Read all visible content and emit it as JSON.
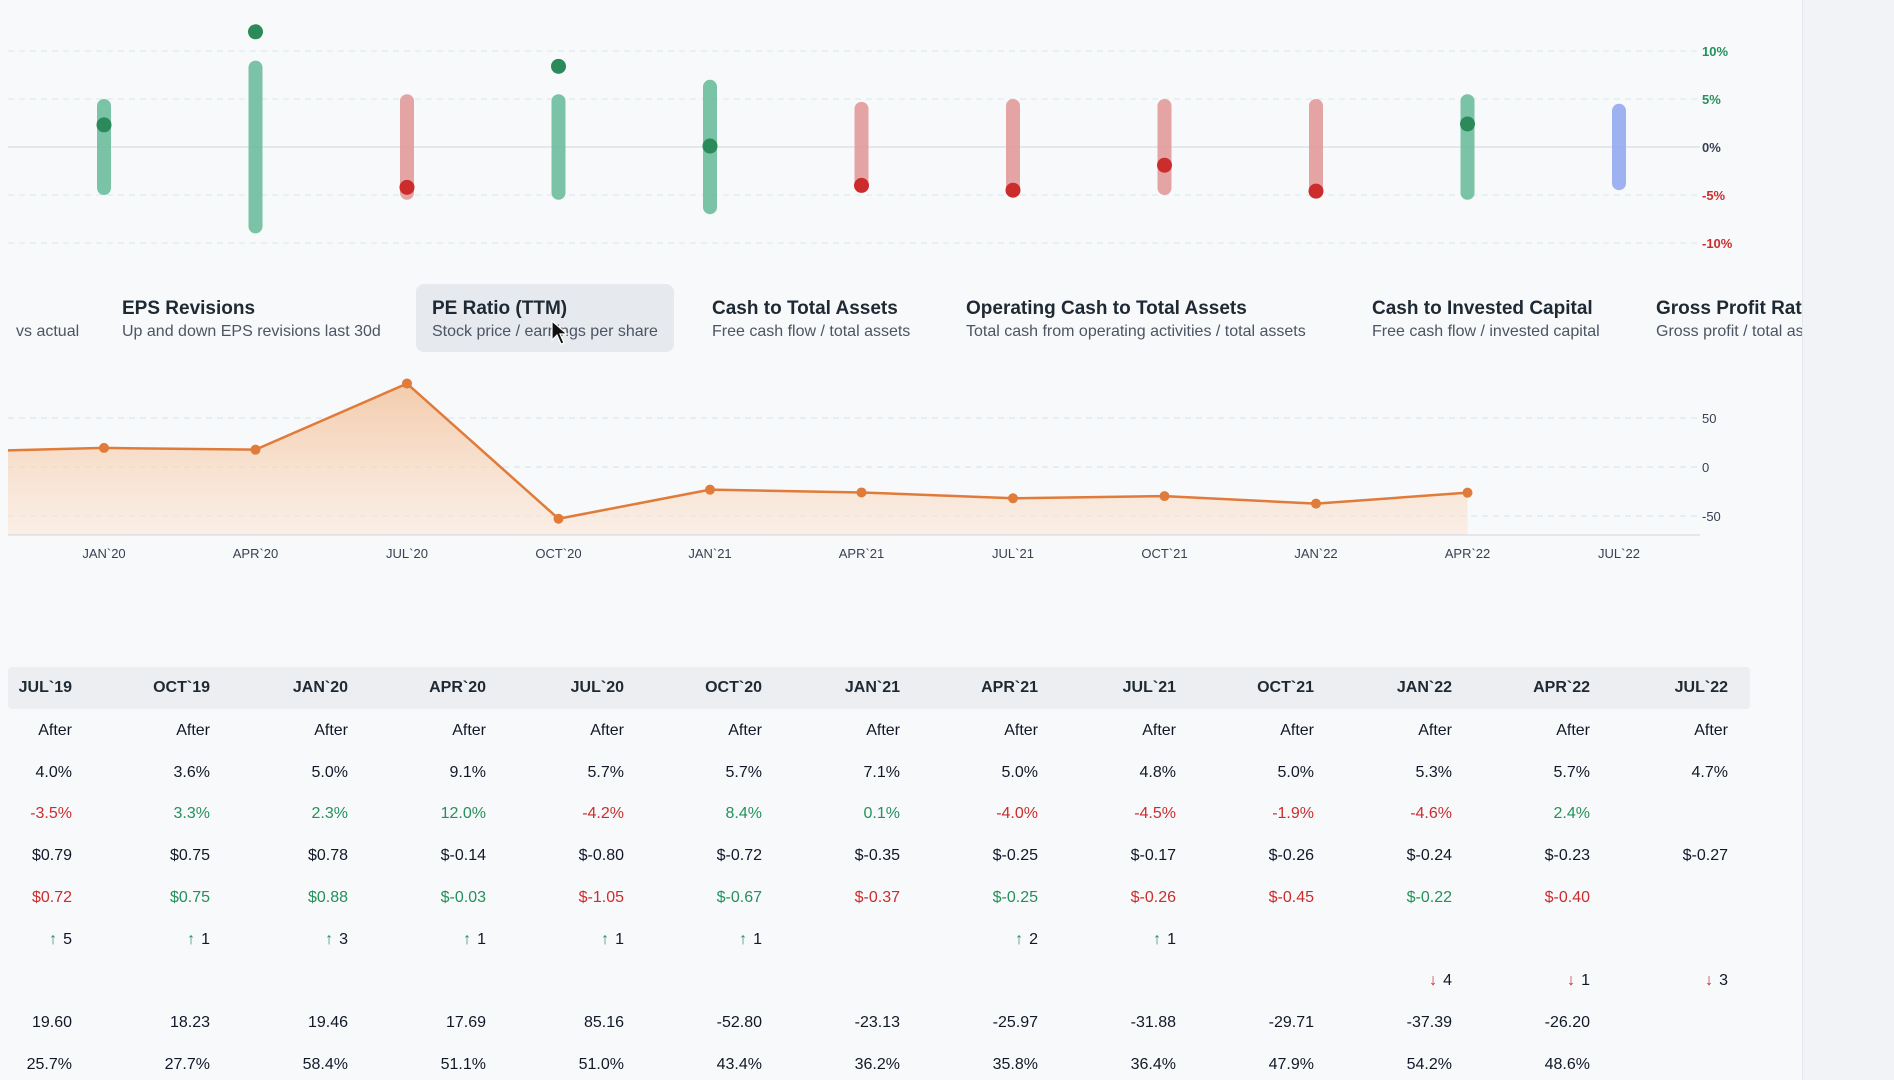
{
  "colors": {
    "green": "#6dbd9c",
    "green_dot": "#2b8a59",
    "red": "#e29a9a",
    "red_dot": "#cc2c2c",
    "blue": "#93a8ef",
    "orange": "#e07b39",
    "orange_fill": "#f3c9a7"
  },
  "periods": [
    "JUL`19",
    "OCT`19",
    "JAN`20",
    "APR`20",
    "JUL`20",
    "OCT`20",
    "JAN`21",
    "APR`21",
    "JUL`21",
    "OCT`21",
    "JAN`22",
    "APR`22",
    "JUL`22"
  ],
  "top_chart": {
    "y_ticks": [
      "10%",
      "5%",
      "0%",
      "-5%",
      "-10%"
    ],
    "bars": [
      {
        "period": "JAN`20",
        "range": [
          -5,
          5
        ],
        "dot": 2.3,
        "color": "green"
      },
      {
        "period": "APR`20",
        "range": [
          -9,
          9
        ],
        "dot": 12.0,
        "color": "green"
      },
      {
        "period": "JUL`20",
        "range": [
          -5.5,
          5.5
        ],
        "dot": -4.2,
        "color": "red"
      },
      {
        "period": "OCT`20",
        "range": [
          -5.5,
          5.5
        ],
        "dot": 8.4,
        "color": "green"
      },
      {
        "period": "JAN`21",
        "range": [
          -7,
          7
        ],
        "dot": 0.1,
        "color": "green"
      },
      {
        "period": "APR`21",
        "range": [
          -4.7,
          4.7
        ],
        "dot": -4.0,
        "color": "red"
      },
      {
        "period": "JUL`21",
        "range": [
          -5,
          5
        ],
        "dot": -4.5,
        "color": "red"
      },
      {
        "period": "OCT`21",
        "range": [
          -5,
          5
        ],
        "dot": -1.9,
        "color": "red"
      },
      {
        "period": "JAN`22",
        "range": [
          -5,
          5
        ],
        "dot": -4.6,
        "color": "red"
      },
      {
        "period": "APR`22",
        "range": [
          -5.5,
          5.5
        ],
        "dot": 2.4,
        "color": "green"
      },
      {
        "period": "JUL`22",
        "range": [
          -4.5,
          4.5
        ],
        "dot": null,
        "color": "blue"
      }
    ]
  },
  "metrics": [
    {
      "title": "",
      "subtitle": "vs actual"
    },
    {
      "title": "EPS Revisions",
      "subtitle": "Up and down EPS revisions last 30d"
    },
    {
      "title": "PE Ratio (TTM)",
      "subtitle": "Stock price / earnings per share",
      "active": true
    },
    {
      "title": "Cash to Total Assets",
      "subtitle": "Free cash flow / total assets"
    },
    {
      "title": "Operating Cash to Total Assets",
      "subtitle": "Total cash from operating activities / total assets"
    },
    {
      "title": "Cash to Invested Capital",
      "subtitle": "Free cash flow / invested capital"
    },
    {
      "title": "Gross Profit Ratio",
      "subtitle": "Gross profit / total assets"
    }
  ],
  "chart_data": {
    "type": "area",
    "x": [
      "JAN`20",
      "APR`20",
      "JUL`20",
      "OCT`20",
      "JAN`21",
      "APR`21",
      "JUL`21",
      "OCT`21",
      "JAN`22",
      "APR`22"
    ],
    "x_ticks": [
      "JAN`20",
      "APR`20",
      "JUL`20",
      "OCT`20",
      "JAN`21",
      "APR`21",
      "JUL`21",
      "OCT`21",
      "JAN`22",
      "APR`22",
      "JUL`22"
    ],
    "series": [
      {
        "values": [
          19.46,
          17.69,
          85.16,
          -52.8,
          -23.13,
          -25.97,
          -31.88,
          -29.71,
          -37.39,
          -26.2
        ]
      }
    ],
    "y_ticks": [
      "50",
      "0",
      "-50"
    ],
    "ylim": [
      -55,
      85
    ],
    "grid": true
  },
  "table": {
    "rows": [
      {
        "values": [
          "After",
          "After",
          "After",
          "After",
          "After",
          "After",
          "After",
          "After",
          "After",
          "After",
          "After",
          "After",
          "After"
        ]
      },
      {
        "values": [
          "4.0%",
          "3.6%",
          "5.0%",
          "9.1%",
          "5.7%",
          "5.7%",
          "7.1%",
          "5.0%",
          "4.8%",
          "5.0%",
          "5.3%",
          "5.7%",
          "4.7%"
        ]
      },
      {
        "values": [
          "-3.5%",
          "3.3%",
          "2.3%",
          "12.0%",
          "-4.2%",
          "8.4%",
          "0.1%",
          "-4.0%",
          "-4.5%",
          "-1.9%",
          "-4.6%",
          "2.4%",
          ""
        ],
        "colors": [
          "red",
          "green",
          "green",
          "green",
          "red",
          "green",
          "green",
          "red",
          "red",
          "red",
          "red",
          "green",
          ""
        ]
      },
      {
        "values": [
          "$0.79",
          "$0.75",
          "$0.78",
          "$-0.14",
          "$-0.80",
          "$-0.72",
          "$-0.35",
          "$-0.25",
          "$-0.17",
          "$-0.26",
          "$-0.24",
          "$-0.23",
          "$-0.27"
        ]
      },
      {
        "values": [
          "$0.72",
          "$0.75",
          "$0.88",
          "$-0.03",
          "$-1.05",
          "$-0.67",
          "$-0.37",
          "$-0.25",
          "$-0.26",
          "$-0.45",
          "$-0.22",
          "$-0.40",
          ""
        ],
        "colors": [
          "red",
          "green",
          "green",
          "green",
          "red",
          "green",
          "red",
          "green",
          "red",
          "red",
          "green",
          "red",
          ""
        ]
      },
      {
        "values": [
          "5",
          "1",
          "3",
          "1",
          "1",
          "1",
          "",
          "2",
          "1",
          "",
          "",
          "",
          ""
        ],
        "arrow": "up"
      },
      {
        "values": [
          "",
          "",
          "",
          "",
          "",
          "",
          "",
          "",
          "",
          "",
          "4",
          "1",
          "3"
        ],
        "arrow": "down"
      },
      {
        "values": [
          "19.60",
          "18.23",
          "19.46",
          "17.69",
          "85.16",
          "-52.80",
          "-23.13",
          "-25.97",
          "-31.88",
          "-29.71",
          "-37.39",
          "-26.20",
          ""
        ]
      },
      {
        "values": [
          "25.7%",
          "27.7%",
          "58.4%",
          "51.1%",
          "51.0%",
          "43.4%",
          "36.2%",
          "35.8%",
          "36.4%",
          "47.9%",
          "54.2%",
          "48.6%",
          ""
        ]
      }
    ]
  }
}
